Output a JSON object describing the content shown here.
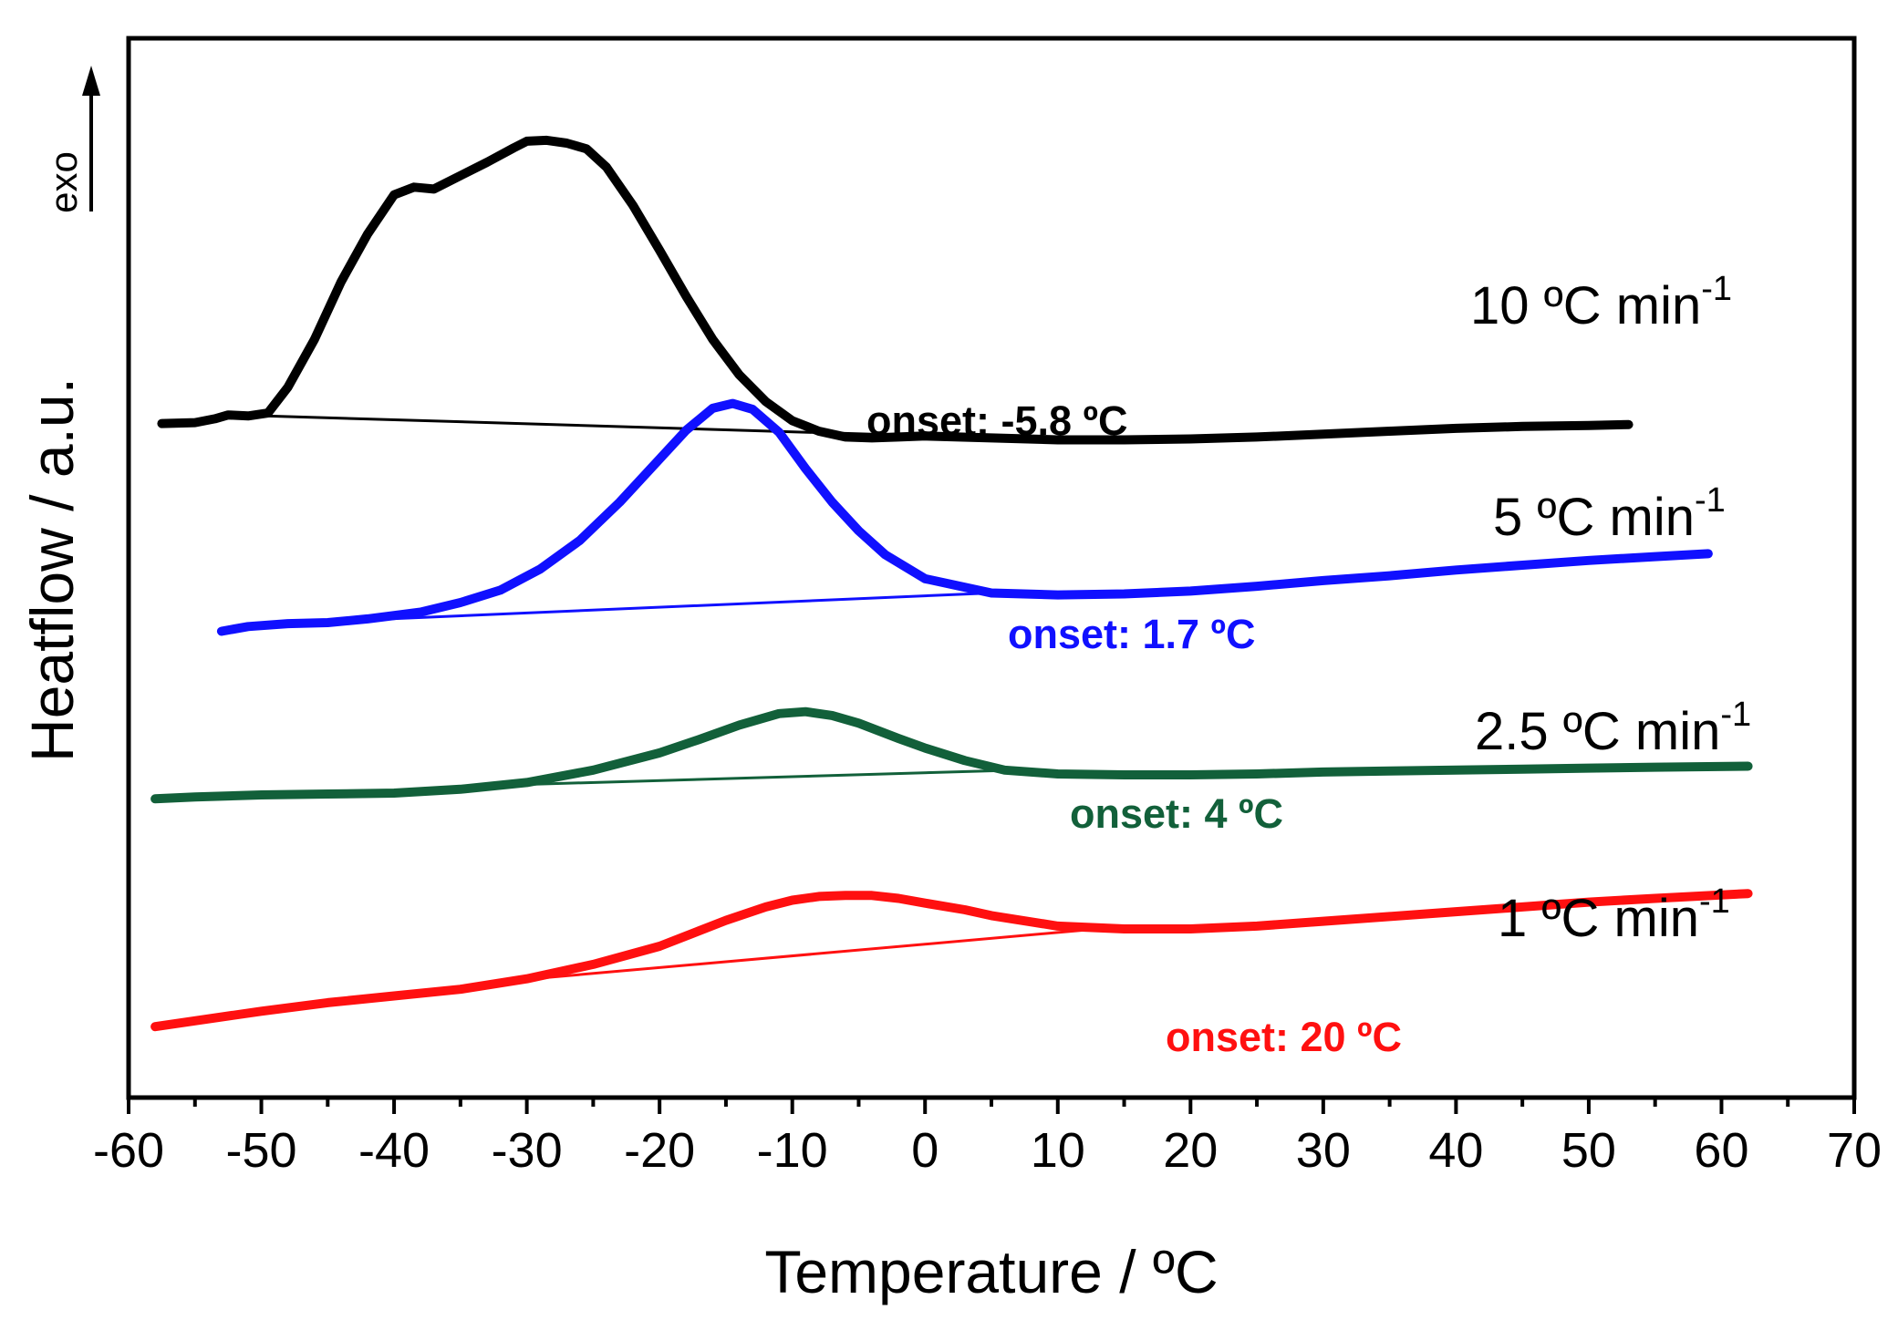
{
  "chart_data": {
    "type": "line",
    "title": "",
    "xlabel": "Temperature / ºC",
    "ylabel": "Heatflow / a.u.",
    "xlim": [
      -60,
      70
    ],
    "ylim": [
      0,
      100
    ],
    "x_ticks": [
      "-60",
      "-50",
      "-40",
      "-30",
      "-20",
      "-10",
      "0",
      "10",
      "20",
      "30",
      "40",
      "50",
      "60",
      "70"
    ],
    "y_ticks_shown": false,
    "exo_indicator": "exo",
    "series": [
      {
        "name": "10 ºC min-1",
        "label": "10 ºC min",
        "label_exponent": "-1",
        "color": "#000000",
        "onset_text": "onset: -5.8 ºC",
        "x": [
          -57.5,
          -55,
          -53.5,
          -52.5,
          -51,
          -49.5,
          -48,
          -46,
          -44,
          -42,
          -40,
          -38.5,
          -37,
          -35,
          -33,
          -31,
          -30,
          -28.5,
          -27,
          -25.5,
          -24,
          -22,
          -20,
          -18,
          -16,
          -14,
          -12,
          -10,
          -8,
          -6,
          -4,
          -2,
          0,
          5,
          10,
          15,
          20,
          25,
          30,
          35,
          40,
          45,
          50,
          53
        ],
        "y": [
          66.7,
          66.8,
          67.2,
          67.6,
          67.5,
          67.8,
          70.5,
          75.5,
          81.5,
          86.5,
          90.6,
          91.4,
          91.2,
          92.6,
          94.0,
          95.5,
          96.2,
          96.3,
          96.0,
          95.4,
          93.5,
          89.5,
          84.8,
          80.0,
          75.5,
          71.8,
          69.0,
          67.0,
          65.9,
          65.3,
          65.2,
          65.3,
          65.4,
          65.2,
          65.0,
          65.0,
          65.1,
          65.3,
          65.6,
          65.9,
          66.2,
          66.4,
          66.5,
          66.6
        ],
        "baseline": {
          "x": [
            -52,
            10
          ],
          "y": [
            67.6,
            65.0
          ]
        }
      },
      {
        "name": "5 ºC min-1",
        "label": "5 ºC min",
        "label_exponent": "-1",
        "color": "#1010ff",
        "onset_text": "onset: 1.7 ºC",
        "x": [
          -53,
          -51,
          -48,
          -45,
          -42,
          -38,
          -35,
          -32,
          -29,
          -26,
          -23,
          -20,
          -18,
          -16,
          -14.5,
          -13,
          -11,
          -9,
          -7,
          -5,
          -3,
          0,
          5,
          10,
          15,
          20,
          25,
          30,
          35,
          40,
          45,
          50,
          55,
          59
        ],
        "y": [
          45.0,
          45.5,
          45.8,
          45.9,
          46.3,
          47.0,
          48.0,
          49.3,
          51.5,
          54.5,
          58.5,
          63.0,
          66.0,
          68.3,
          68.8,
          68.2,
          65.8,
          62.0,
          58.5,
          55.5,
          53.0,
          50.5,
          49.0,
          48.8,
          48.9,
          49.2,
          49.7,
          50.3,
          50.8,
          51.4,
          51.9,
          52.4,
          52.8,
          53.1
        ],
        "baseline": {
          "x": [
            -42,
            5
          ],
          "y": [
            46.2,
            49.0
          ]
        }
      },
      {
        "name": "2.5 ºC min-1",
        "label": "2.5 ºC min",
        "label_exponent": "-1",
        "color": "#12603a",
        "onset_text": "onset: 4 ºC",
        "x": [
          -58,
          -55,
          -50,
          -45,
          -40,
          -35,
          -30,
          -25,
          -20,
          -17,
          -14,
          -11,
          -9,
          -7,
          -5,
          -2,
          0,
          3,
          6,
          10,
          15,
          20,
          25,
          30,
          35,
          40,
          45,
          50,
          55,
          62
        ],
        "y": [
          27.5,
          27.7,
          27.9,
          28.0,
          28.1,
          28.5,
          29.2,
          30.5,
          32.3,
          33.7,
          35.2,
          36.4,
          36.6,
          36.2,
          35.4,
          33.8,
          32.8,
          31.5,
          30.5,
          30.1,
          30.0,
          30.0,
          30.1,
          30.3,
          30.4,
          30.5,
          30.6,
          30.7,
          30.8,
          30.9
        ],
        "baseline": {
          "x": [
            -30,
            7
          ],
          "y": [
            29.0,
            30.5
          ]
        }
      },
      {
        "name": "1 ºC min-1",
        "label": "1 ºC min",
        "label_exponent": "-1",
        "color": "#ff1010",
        "onset_text": "onset: 20 ºC",
        "x": [
          -58,
          -55,
          -50,
          -45,
          -40,
          -35,
          -30,
          -25,
          -20,
          -15,
          -12,
          -10,
          -8,
          -6,
          -4,
          -2,
          0,
          3,
          5,
          10,
          15,
          20,
          25,
          30,
          35,
          40,
          45,
          50,
          55,
          62
        ],
        "y": [
          3.7,
          4.3,
          5.3,
          6.2,
          6.9,
          7.6,
          8.7,
          10.2,
          12.1,
          14.8,
          16.2,
          16.9,
          17.3,
          17.4,
          17.4,
          17.1,
          16.6,
          15.9,
          15.3,
          14.2,
          13.9,
          13.9,
          14.2,
          14.7,
          15.2,
          15.7,
          16.2,
          16.7,
          17.1,
          17.6
        ],
        "baseline": {
          "x": [
            -32,
            13
          ],
          "y": [
            8.4,
            13.9
          ]
        }
      }
    ]
  }
}
